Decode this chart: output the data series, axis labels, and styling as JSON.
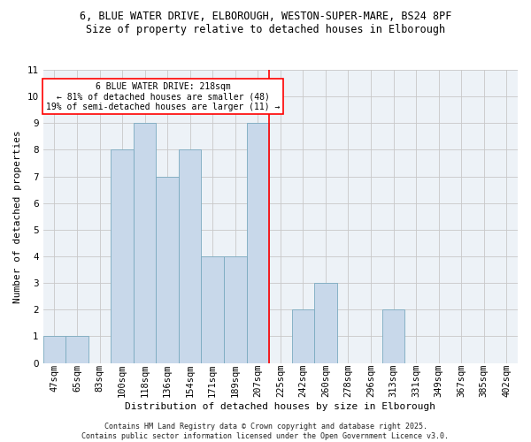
{
  "title1": "6, BLUE WATER DRIVE, ELBOROUGH, WESTON-SUPER-MARE, BS24 8PF",
  "title2": "Size of property relative to detached houses in Elborough",
  "xlabel": "Distribution of detached houses by size in Elborough",
  "ylabel": "Number of detached properties",
  "footer": "Contains HM Land Registry data © Crown copyright and database right 2025.\nContains public sector information licensed under the Open Government Licence v3.0.",
  "bin_labels": [
    "47sqm",
    "65sqm",
    "83sqm",
    "100sqm",
    "118sqm",
    "136sqm",
    "154sqm",
    "171sqm",
    "189sqm",
    "207sqm",
    "225sqm",
    "242sqm",
    "260sqm",
    "278sqm",
    "296sqm",
    "313sqm",
    "331sqm",
    "349sqm",
    "367sqm",
    "385sqm",
    "402sqm"
  ],
  "bar_values": [
    1,
    1,
    0,
    8,
    9,
    7,
    8,
    4,
    4,
    9,
    0,
    2,
    3,
    0,
    0,
    2,
    0,
    0,
    0,
    0,
    0
  ],
  "bar_color": "#c8d8ea",
  "bar_edge_color": "#7aaabf",
  "vline_x": 9.5,
  "vline_color": "red",
  "annotation_text": "6 BLUE WATER DRIVE: 218sqm\n← 81% of detached houses are smaller (48)\n19% of semi-detached houses are larger (11) →",
  "annotation_box_color": "white",
  "annotation_box_edge": "red",
  "ylim": [
    0,
    11
  ],
  "yticks": [
    0,
    1,
    2,
    3,
    4,
    5,
    6,
    7,
    8,
    9,
    10,
    11
  ],
  "background_color": "#edf2f7",
  "grid_color": "#c8c8c8",
  "title1_fontsize": 8.5,
  "title2_fontsize": 8.5,
  "ylabel_fontsize": 8,
  "xlabel_fontsize": 8,
  "tick_fontsize": 7.5,
  "annot_fontsize": 7,
  "footer_fontsize": 6
}
